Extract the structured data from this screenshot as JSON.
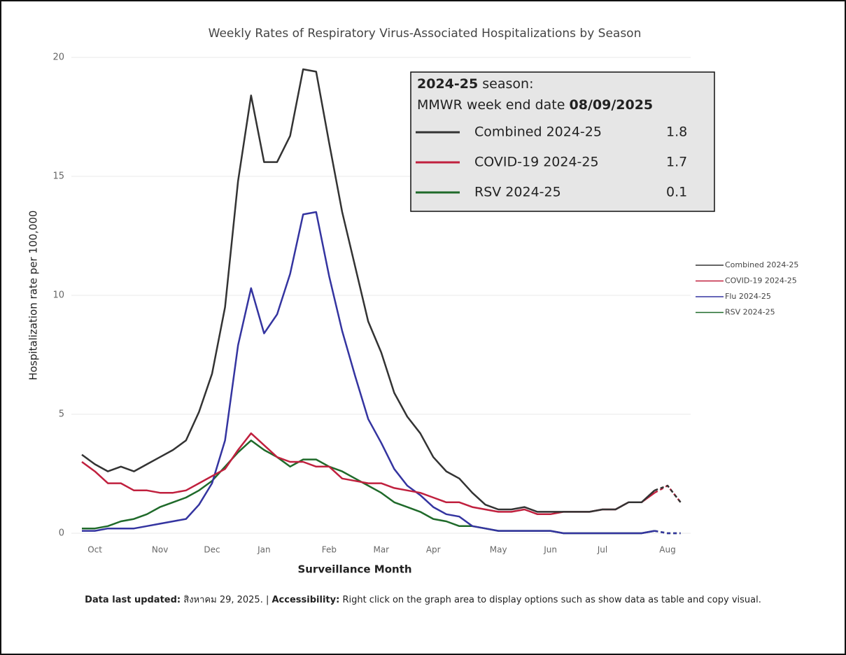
{
  "chart_data": {
    "type": "line",
    "title": "Weekly Rates of Respiratory Virus-Associated Hospitalizations by Season",
    "y_label": "Hospitalization rate per 100,000",
    "x_label": "Surveillance Month",
    "categories": [
      null,
      "Oct",
      null,
      null,
      null,
      null,
      "Nov",
      null,
      null,
      null,
      "Dec",
      null,
      null,
      null,
      "Jan",
      null,
      null,
      null,
      null,
      "Feb",
      null,
      null,
      null,
      "Mar",
      null,
      null,
      null,
      "Apr",
      null,
      null,
      null,
      null,
      "May",
      null,
      null,
      null,
      "Jun",
      null,
      null,
      null,
      "Jul",
      null,
      null,
      null,
      null,
      "Aug",
      null
    ],
    "dashed_from": 44,
    "ylim": [
      0,
      20
    ],
    "yticks": [
      0,
      5,
      10,
      15,
      20
    ],
    "grid": true,
    "legend": "right",
    "series": [
      {
        "name": "Combined 2024-25",
        "color": "#333333",
        "values": [
          3.3,
          2.9,
          2.6,
          2.8,
          2.6,
          2.9,
          3.2,
          3.5,
          3.9,
          5.1,
          6.7,
          9.5,
          14.8,
          18.4,
          15.6,
          15.6,
          16.7,
          19.5,
          19.4,
          16.4,
          13.5,
          11.2,
          8.9,
          7.6,
          5.9,
          4.9,
          4.2,
          3.2,
          2.6,
          2.3,
          1.7,
          1.2,
          1.0,
          1.0,
          1.1,
          0.9,
          0.9,
          0.9,
          0.9,
          0.9,
          1.0,
          1.0,
          1.3,
          1.3,
          1.8,
          2.0,
          1.3
        ]
      },
      {
        "name": "COVID-19 2024-25",
        "color": "#c0203e",
        "values": [
          3.0,
          2.6,
          2.1,
          2.1,
          1.8,
          1.8,
          1.7,
          1.7,
          1.8,
          2.1,
          2.4,
          2.7,
          3.5,
          4.2,
          3.7,
          3.2,
          3.0,
          3.0,
          2.8,
          2.8,
          2.3,
          2.2,
          2.1,
          2.1,
          1.9,
          1.8,
          1.7,
          1.5,
          1.3,
          1.3,
          1.1,
          1.0,
          0.9,
          0.9,
          1.0,
          0.8,
          0.8,
          0.9,
          0.9,
          0.9,
          1.0,
          1.0,
          1.3,
          1.3,
          1.7,
          2.0,
          1.3
        ]
      },
      {
        "name": "Flu 2024-25",
        "color": "#3434a0",
        "values": [
          0.1,
          0.1,
          0.2,
          0.2,
          0.2,
          0.3,
          0.4,
          0.5,
          0.6,
          1.2,
          2.1,
          3.9,
          7.9,
          10.3,
          8.4,
          9.2,
          10.9,
          13.4,
          13.5,
          10.8,
          8.5,
          6.6,
          4.8,
          3.8,
          2.7,
          2.0,
          1.6,
          1.1,
          0.8,
          0.7,
          0.3,
          0.2,
          0.1,
          0.1,
          0.1,
          0.1,
          0.1,
          0.0,
          0.0,
          0.0,
          0.0,
          0.0,
          0.0,
          0.0,
          0.1,
          0.0,
          0.0
        ]
      },
      {
        "name": "RSV 2024-25",
        "color": "#1f6a2a",
        "values": [
          0.2,
          0.2,
          0.3,
          0.5,
          0.6,
          0.8,
          1.1,
          1.3,
          1.5,
          1.8,
          2.2,
          2.8,
          3.4,
          3.9,
          3.5,
          3.2,
          2.8,
          3.1,
          3.1,
          2.8,
          2.6,
          2.3,
          2.0,
          1.7,
          1.3,
          1.1,
          0.9,
          0.6,
          0.5,
          0.3,
          0.3,
          0.2,
          0.1,
          0.1,
          0.1,
          0.1,
          0.1,
          0.0,
          0.0,
          0.0,
          0.0,
          0.0,
          0.0,
          0.0,
          0.1,
          0.0,
          0.0
        ]
      }
    ],
    "callout": {
      "season": "2024-25",
      "season_suffix": "season:",
      "date_label": "MMWR week end date",
      "date": "08/09/2025",
      "rows": [
        {
          "name": "Combined 2024-25",
          "color": "#333333",
          "value": 1.8
        },
        {
          "name": "COVID-19 2024-25",
          "color": "#c0203e",
          "value": 1.7
        },
        {
          "name": "RSV 2024-25",
          "color": "#1f6a2a",
          "value": 0.1
        }
      ]
    }
  },
  "footer": {
    "updated_label": "Data last updated:",
    "updated": "สิงหาคม 29, 2025. |",
    "access_label": "Accessibility:",
    "access_text": "Right click on the graph area to display options such as show data as table and copy visual."
  }
}
